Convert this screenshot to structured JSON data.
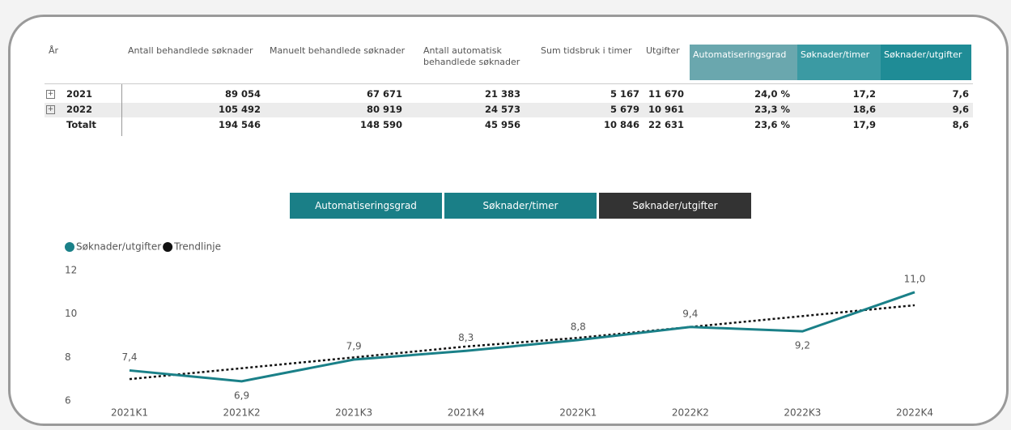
{
  "table": {
    "headers": [
      "År",
      "Antall behandlede søknader",
      "Manuelt behandlede søknader",
      "Antall automatisk behandlede søknader",
      "Sum tidsbruk i timer",
      "Utgifter",
      "Automatiseringsgrad",
      "Søknader/timer",
      "Søknader/utgifter"
    ],
    "rows": [
      [
        "2021",
        "89 054",
        "67 671",
        "21 383",
        "5 167",
        "11 670",
        "24,0 %",
        "17,2",
        "7,6"
      ],
      [
        "2022",
        "105 492",
        "80 919",
        "24 573",
        "5 679",
        "10 961",
        "23,3 %",
        "18,6",
        "9,6"
      ],
      [
        "Totalt",
        "194 546",
        "148 590",
        "45 956",
        "10 846",
        "22 631",
        "23,6 %",
        "17,9",
        "8,6"
      ]
    ]
  },
  "buttons": [
    "Automatiseringsgrad",
    "Søknader/timer",
    "Søknader/utgifter"
  ],
  "chart_data": {
    "type": "line",
    "categories": [
      "2021K1",
      "2021K2",
      "2021K3",
      "2021K4",
      "2022K1",
      "2022K2",
      "2022K3",
      "2022K4"
    ],
    "series": [
      {
        "name": "Søknader/utgifter",
        "color": "#1a8088",
        "values": [
          7.4,
          6.9,
          7.9,
          8.3,
          8.8,
          9.4,
          9.2,
          11.0
        ],
        "value_labels": [
          "7,4",
          "6,9",
          "7,9",
          "8,3",
          "8,8",
          "9,4",
          "9,2",
          "11,0"
        ]
      },
      {
        "name": "Trendlinje",
        "color": "#111111",
        "dashed": true,
        "values": [
          7.0,
          7.5,
          8.0,
          8.5,
          8.9,
          9.4,
          9.9,
          10.4
        ]
      }
    ],
    "ylim": [
      6,
      12
    ],
    "yticks": [
      6,
      8,
      10,
      12
    ],
    "legend": "top-left"
  }
}
